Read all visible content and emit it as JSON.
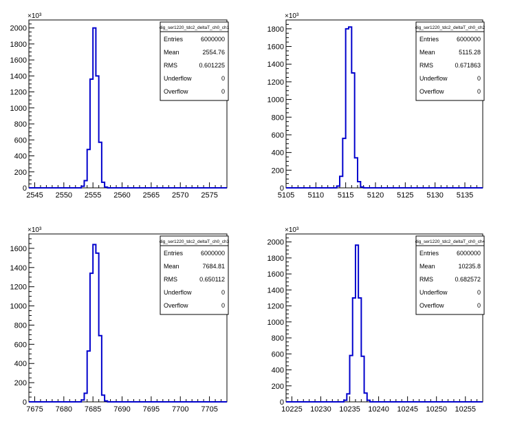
{
  "chart_data": [
    {
      "type": "histogram",
      "stats_title": "dig_ser1220_tdc2_deltaT_ch0_ch1",
      "y_exponent_label": "×10³",
      "xlim": [
        2544,
        2578
      ],
      "ylim": [
        0,
        2100
      ],
      "bin_width": 0.5,
      "x_ticks": [
        2545,
        2550,
        2555,
        2560,
        2565,
        2570,
        2575
      ],
      "y_ticks": [
        0,
        200,
        400,
        600,
        800,
        1000,
        1200,
        1400,
        1600,
        1800,
        2000
      ],
      "bins": [
        {
          "x": 2553.0,
          "value": 20
        },
        {
          "x": 2553.5,
          "value": 90
        },
        {
          "x": 2554.0,
          "value": 480
        },
        {
          "x": 2554.5,
          "value": 1360
        },
        {
          "x": 2555.0,
          "value": 2000
        },
        {
          "x": 2555.5,
          "value": 1400
        },
        {
          "x": 2556.0,
          "value": 570
        },
        {
          "x": 2556.5,
          "value": 70
        },
        {
          "x": 2557.0,
          "value": 10
        }
      ],
      "stats": [
        {
          "label": "Entries",
          "value": "6000000"
        },
        {
          "label": "Mean",
          "value": "2554.76"
        },
        {
          "label": "RMS",
          "value": "0.601225"
        },
        {
          "label": "Underflow",
          "value": "0"
        },
        {
          "label": "Overflow",
          "value": "0"
        }
      ]
    },
    {
      "type": "histogram",
      "stats_title": "dig_ser1220_tdc2_deltaT_ch0_ch2",
      "y_exponent_label": "×10³",
      "xlim": [
        5105,
        5138
      ],
      "ylim": [
        0,
        1900
      ],
      "bin_width": 0.5,
      "x_ticks": [
        5105,
        5110,
        5115,
        5120,
        5125,
        5130,
        5135
      ],
      "y_ticks": [
        0,
        200,
        400,
        600,
        800,
        1000,
        1200,
        1400,
        1600,
        1800
      ],
      "bins": [
        {
          "x": 5113.5,
          "value": 20
        },
        {
          "x": 5114.0,
          "value": 130
        },
        {
          "x": 5114.5,
          "value": 560
        },
        {
          "x": 5115.0,
          "value": 1800
        },
        {
          "x": 5115.5,
          "value": 1820
        },
        {
          "x": 5116.0,
          "value": 1300
        },
        {
          "x": 5116.5,
          "value": 340
        },
        {
          "x": 5117.0,
          "value": 70
        },
        {
          "x": 5117.5,
          "value": 10
        }
      ],
      "stats": [
        {
          "label": "Entries",
          "value": "6000000"
        },
        {
          "label": "Mean",
          "value": "5115.28"
        },
        {
          "label": "RMS",
          "value": "0.671863"
        },
        {
          "label": "Underflow",
          "value": "0"
        },
        {
          "label": "Overflow",
          "value": "0"
        }
      ]
    },
    {
      "type": "histogram",
      "stats_title": "dig_ser1220_tdc2_deltaT_ch0_ch3",
      "y_exponent_label": "×10³",
      "xlim": [
        7674,
        7708
      ],
      "ylim": [
        0,
        1750
      ],
      "bin_width": 0.5,
      "x_ticks": [
        7675,
        7680,
        7685,
        7690,
        7695,
        7700,
        7705
      ],
      "y_ticks": [
        0,
        200,
        400,
        600,
        800,
        1000,
        1200,
        1400,
        1600
      ],
      "bins": [
        {
          "x": 7683.0,
          "value": 20
        },
        {
          "x": 7683.5,
          "value": 90
        },
        {
          "x": 7684.0,
          "value": 530
        },
        {
          "x": 7684.5,
          "value": 1340
        },
        {
          "x": 7685.0,
          "value": 1640
        },
        {
          "x": 7685.5,
          "value": 1550
        },
        {
          "x": 7686.0,
          "value": 690
        },
        {
          "x": 7686.5,
          "value": 70
        },
        {
          "x": 7687.0,
          "value": 10
        }
      ],
      "stats": [
        {
          "label": "Entries",
          "value": "6000000"
        },
        {
          "label": "Mean",
          "value": "7684.81"
        },
        {
          "label": "RMS",
          "value": "0.650112"
        },
        {
          "label": "Underflow",
          "value": "0"
        },
        {
          "label": "Overflow",
          "value": "0"
        }
      ]
    },
    {
      "type": "histogram",
      "stats_title": "dig_ser1220_tdc2_deltaT_ch0_ch4",
      "y_exponent_label": "×10³",
      "xlim": [
        10224,
        10258
      ],
      "ylim": [
        0,
        2100
      ],
      "bin_width": 0.5,
      "x_ticks": [
        10225,
        10230,
        10235,
        10240,
        10245,
        10250,
        10255
      ],
      "y_ticks": [
        0,
        200,
        400,
        600,
        800,
        1000,
        1200,
        1400,
        1600,
        1800,
        2000
      ],
      "bins": [
        {
          "x": 10234.0,
          "value": 20
        },
        {
          "x": 10234.5,
          "value": 100
        },
        {
          "x": 10235.0,
          "value": 580
        },
        {
          "x": 10235.5,
          "value": 1300
        },
        {
          "x": 10236.0,
          "value": 1960
        },
        {
          "x": 10236.5,
          "value": 1300
        },
        {
          "x": 10237.0,
          "value": 570
        },
        {
          "x": 10237.5,
          "value": 110
        },
        {
          "x": 10238.0,
          "value": 20
        }
      ],
      "stats": [
        {
          "label": "Entries",
          "value": "6000000"
        },
        {
          "label": "Mean",
          "value": "10235.8"
        },
        {
          "label": "RMS",
          "value": "0.682572"
        },
        {
          "label": "Underflow",
          "value": "0"
        },
        {
          "label": "Overflow",
          "value": "0"
        }
      ]
    }
  ],
  "colors": {
    "histogram_line": "#0000cc",
    "axis": "#000000",
    "background": "#ffffff"
  }
}
